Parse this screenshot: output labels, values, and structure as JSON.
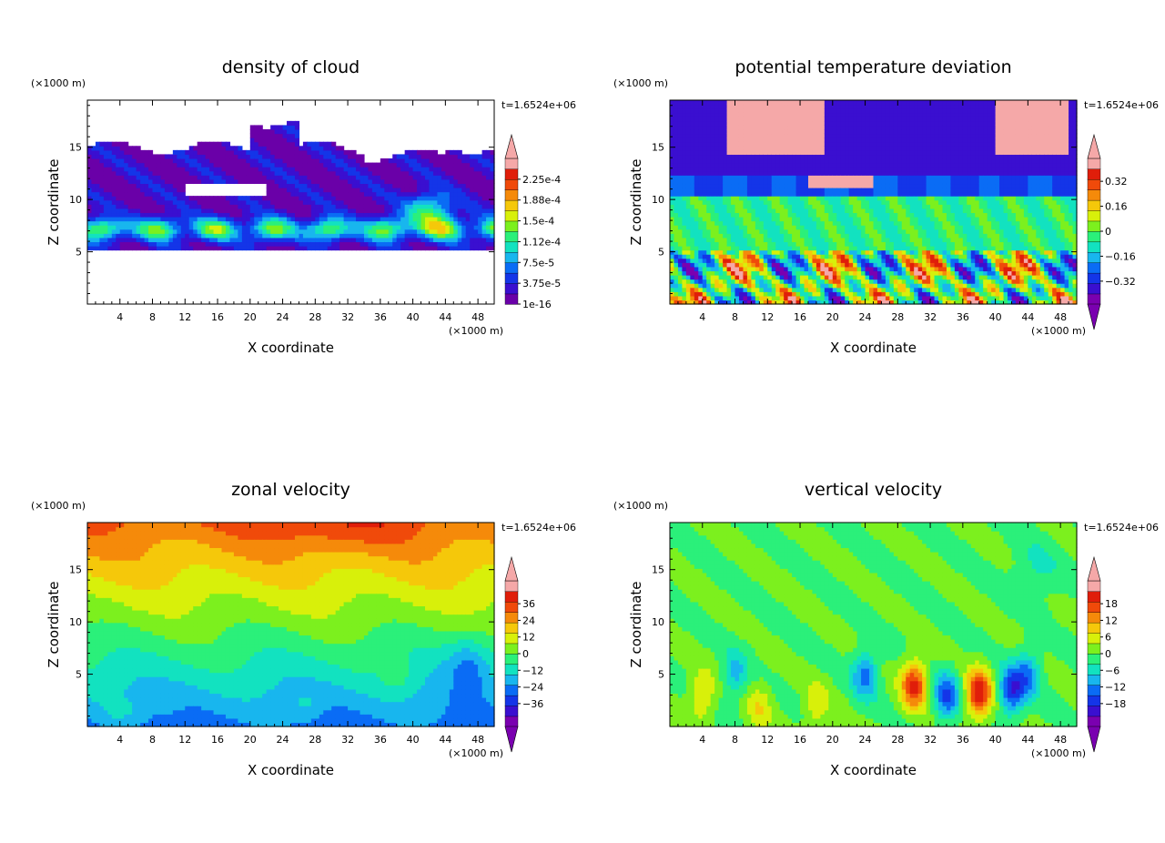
{
  "chart_data": [
    {
      "type": "heatmap",
      "title": "density of cloud",
      "xlabel": "X coordinate",
      "ylabel": "Z coordinate",
      "x_unit": "(×1000 m)",
      "y_unit": "(×1000 m)",
      "time_label": "t=1.6524e+06",
      "xlim": [
        0,
        50
      ],
      "ylim": [
        0,
        19.5
      ],
      "x_ticks": [
        "4",
        "8",
        "12",
        "16",
        "20",
        "24",
        "28",
        "32",
        "36",
        "40",
        "44",
        "48"
      ],
      "y_ticks": [
        "5",
        "10",
        "15"
      ],
      "colorbar_labels": [
        "1e-16",
        "3.75e-5",
        "7.5e-5",
        "1.12e-4",
        "1.5e-4",
        "1.88e-4",
        "2.25e-4"
      ],
      "colorbar_min": 0,
      "colorbar_max": 0.00026,
      "pattern": "cloud",
      "colors": [
        "#6a00a8",
        "#3a0fd0",
        "#1435e8",
        "#0a6cf5",
        "#18b6ee",
        "#12e2c0",
        "#2bf07a",
        "#7cf01e",
        "#d8f00a",
        "#f5c80a",
        "#f58a0a",
        "#f04a0a",
        "#e01e0a",
        "#f5a8a8"
      ]
    },
    {
      "type": "heatmap",
      "title": "potential temperature deviation",
      "xlabel": "X coordinate",
      "ylabel": "Z coordinate",
      "x_unit": "(×1000 m)",
      "y_unit": "(×1000 m)",
      "time_label": "t=1.6524e+06",
      "xlim": [
        0,
        50
      ],
      "ylim": [
        0,
        19.5
      ],
      "x_ticks": [
        "4",
        "8",
        "12",
        "16",
        "20",
        "24",
        "28",
        "32",
        "36",
        "40",
        "44",
        "48"
      ],
      "y_ticks": [
        "5",
        "10",
        "15"
      ],
      "colorbar_labels": [
        "−0.32",
        "−0.16",
        "0",
        "0.16",
        "0.32"
      ],
      "colorbar_min": -0.48,
      "colorbar_max": 0.48,
      "pattern": "theta",
      "colors": [
        "#7a00b0",
        "#3a0fd0",
        "#1435e8",
        "#0a6cf5",
        "#18b6ee",
        "#12e2c0",
        "#2bf07a",
        "#7cf01e",
        "#d8f00a",
        "#f5c80a",
        "#f58a0a",
        "#f04a0a",
        "#e01e0a",
        "#f5a8a8"
      ]
    },
    {
      "type": "heatmap",
      "title": "zonal velocity",
      "xlabel": "X coordinate",
      "ylabel": "Z coordinate",
      "x_unit": "(×1000 m)",
      "y_unit": "(×1000 m)",
      "time_label": "t=1.6524e+06",
      "xlim": [
        0,
        50
      ],
      "ylim": [
        0,
        19.5
      ],
      "x_ticks": [
        "4",
        "8",
        "12",
        "16",
        "20",
        "24",
        "28",
        "32",
        "36",
        "40",
        "44",
        "48"
      ],
      "y_ticks": [
        "5",
        "10",
        "15"
      ],
      "colorbar_labels": [
        "−36",
        "−24",
        "−12",
        "0",
        "12",
        "24",
        "36"
      ],
      "colorbar_min": -48,
      "colorbar_max": 48,
      "pattern": "zonal",
      "colors": [
        "#7a00b0",
        "#3a0fd0",
        "#1435e8",
        "#0a6cf5",
        "#18b6ee",
        "#12e2c0",
        "#2bf07a",
        "#7cf01e",
        "#d8f00a",
        "#f5c80a",
        "#f58a0a",
        "#f04a0a",
        "#e01e0a",
        "#f5a8a8"
      ]
    },
    {
      "type": "heatmap",
      "title": "vertical velocity",
      "xlabel": "X coordinate",
      "ylabel": "Z coordinate",
      "x_unit": "(×1000 m)",
      "y_unit": "(×1000 m)",
      "time_label": "t=1.6524e+06",
      "xlim": [
        0,
        50
      ],
      "ylim": [
        0,
        19.5
      ],
      "x_ticks": [
        "4",
        "8",
        "12",
        "16",
        "20",
        "24",
        "28",
        "32",
        "36",
        "40",
        "44",
        "48"
      ],
      "y_ticks": [
        "5",
        "10",
        "15"
      ],
      "colorbar_labels": [
        "−18",
        "−12",
        "−6",
        "0",
        "6",
        "12",
        "18"
      ],
      "colorbar_min": -24,
      "colorbar_max": 24,
      "pattern": "vertical",
      "colors": [
        "#7a00b0",
        "#3a0fd0",
        "#1435e8",
        "#0a6cf5",
        "#18b6ee",
        "#12e2c0",
        "#2bf07a",
        "#7cf01e",
        "#d8f00a",
        "#f5c80a",
        "#f58a0a",
        "#f04a0a",
        "#e01e0a",
        "#f5a8a8"
      ]
    }
  ]
}
